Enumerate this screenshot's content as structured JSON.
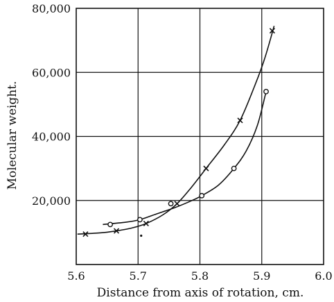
{
  "chart_data": {
    "type": "scatter",
    "title": "",
    "xlabel": "Distance from axis of rotation, cm.",
    "ylabel": "Molecular weight.",
    "xlim": [
      5.6,
      6.0
    ],
    "ylim": [
      0,
      80000
    ],
    "x_ticks": [
      5.6,
      5.7,
      5.8,
      5.9,
      6.0
    ],
    "x_tick_labels": [
      "5.6",
      "5.7",
      "5.8",
      "5.9",
      "6.0"
    ],
    "y_ticks": [
      20000,
      40000,
      60000,
      80000
    ],
    "y_tick_labels": [
      "20,000",
      "40,000",
      "60,000",
      "80,000"
    ],
    "grid": true,
    "colors": {
      "ink": "#111111",
      "background": "#ffffff"
    },
    "series": [
      {
        "marker": "x",
        "points": [
          {
            "x": 5.615,
            "y": 9500
          },
          {
            "x": 5.665,
            "y": 10500
          },
          {
            "x": 5.713,
            "y": 12800
          },
          {
            "x": 5.763,
            "y": 19000
          },
          {
            "x": 5.81,
            "y": 30000
          },
          {
            "x": 5.865,
            "y": 45000
          },
          {
            "x": 5.917,
            "y": 73000
          }
        ],
        "curve": [
          {
            "x": 5.602,
            "y": 9500
          },
          {
            "x": 5.64,
            "y": 9900
          },
          {
            "x": 5.665,
            "y": 10500
          },
          {
            "x": 5.69,
            "y": 11400
          },
          {
            "x": 5.713,
            "y": 12800
          },
          {
            "x": 5.74,
            "y": 15500
          },
          {
            "x": 5.763,
            "y": 19000
          },
          {
            "x": 5.785,
            "y": 23800
          },
          {
            "x": 5.81,
            "y": 30000
          },
          {
            "x": 5.84,
            "y": 37500
          },
          {
            "x": 5.865,
            "y": 45000
          },
          {
            "x": 5.89,
            "y": 56500
          },
          {
            "x": 5.905,
            "y": 64500
          },
          {
            "x": 5.92,
            "y": 74500
          }
        ]
      },
      {
        "marker": "o",
        "points": [
          {
            "x": 5.655,
            "y": 12500
          },
          {
            "x": 5.703,
            "y": 14000
          },
          {
            "x": 5.753,
            "y": 19000
          },
          {
            "x": 5.803,
            "y": 21500
          },
          {
            "x": 5.855,
            "y": 30000
          },
          {
            "x": 5.907,
            "y": 54000
          }
        ],
        "curve": [
          {
            "x": 5.643,
            "y": 12500
          },
          {
            "x": 5.68,
            "y": 13200
          },
          {
            "x": 5.703,
            "y": 14000
          },
          {
            "x": 5.73,
            "y": 15800
          },
          {
            "x": 5.76,
            "y": 17800
          },
          {
            "x": 5.785,
            "y": 19800
          },
          {
            "x": 5.803,
            "y": 21500
          },
          {
            "x": 5.83,
            "y": 24800
          },
          {
            "x": 5.855,
            "y": 30000
          },
          {
            "x": 5.875,
            "y": 35500
          },
          {
            "x": 5.893,
            "y": 43500
          },
          {
            "x": 5.907,
            "y": 54000
          }
        ]
      }
    ],
    "annotations": [
      {
        "marker": "dot",
        "x": 5.705,
        "y": 9000
      }
    ]
  }
}
